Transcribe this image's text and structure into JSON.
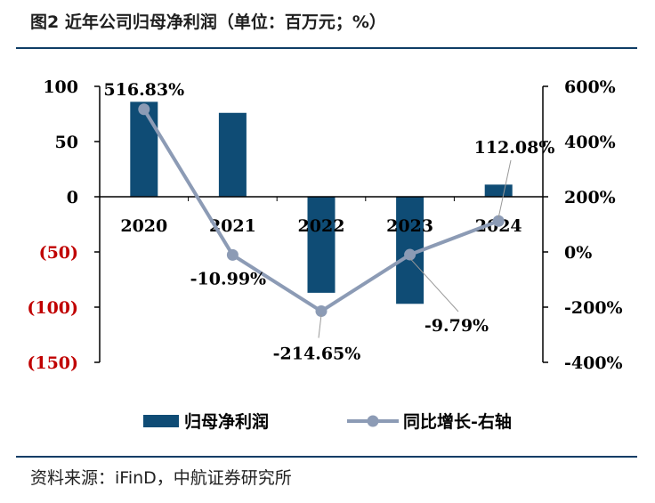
{
  "header": {
    "title": "图2  近年公司归母净利润（单位：百万元；%）"
  },
  "footer": {
    "source": "资料来源：iFinD，中航证券研究所"
  },
  "colors": {
    "bar": "#0f4c75",
    "line": "#8c9bb5",
    "negative_tick": "#c00000",
    "axis": "#000000"
  },
  "chart_data": {
    "type": "bar+line",
    "categories": [
      "2020",
      "2021",
      "2022",
      "2023",
      "2024"
    ],
    "series": [
      {
        "name": "归母净利润",
        "type": "bar",
        "axis": "left",
        "values": [
          86,
          76,
          -87,
          -97,
          11
        ]
      },
      {
        "name": "同比增长-右轴",
        "type": "line",
        "axis": "right",
        "values": [
          516.83,
          -10.99,
          -214.65,
          -9.79,
          112.08
        ],
        "data_labels": [
          "516.83%",
          "-10.99%",
          "-214.65%",
          "-9.79%",
          "112.08%"
        ]
      }
    ],
    "left_axis": {
      "ylim": [
        -150,
        100
      ],
      "ticks": [
        100,
        50,
        0,
        -50,
        -100,
        -150
      ],
      "tick_labels": [
        "100",
        "50",
        "0",
        "(50)",
        "(100)",
        "(150)"
      ]
    },
    "right_axis": {
      "ylim": [
        -400,
        600
      ],
      "ticks": [
        600,
        400,
        200,
        0,
        -200,
        -400
      ],
      "tick_labels": [
        "600%",
        "400%",
        "200%",
        "0%",
        "-200%",
        "-400%"
      ]
    },
    "legend": {
      "position": "bottom",
      "items": [
        "归母净利润",
        "同比增长-右轴"
      ]
    }
  }
}
